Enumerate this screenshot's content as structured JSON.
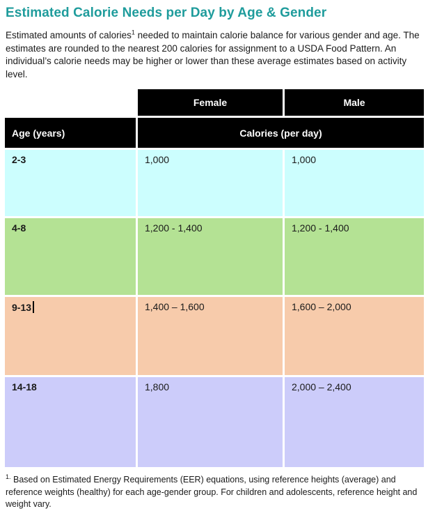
{
  "document": {
    "title": "Estimated Calorie Needs per Day by Age & Gender",
    "intro": {
      "text_before_superscript": "Estimated amounts of calories",
      "superscript": "1",
      "text_after_superscript": " needed to maintain calorie balance for various gender and age. The estimates are rounded to the nearest 200 calories for assignment to a USDA Food Pattern. An individual’s calorie needs may be higher or lower than these average estimates based on activity level."
    },
    "footnote": {
      "superscript": "1.",
      "text": " Based on Estimated Energy Requirements (EER) equations, using reference heights (average) and reference weights (healthy) for each age-gender group. For children and adolescents, reference height and weight vary."
    }
  },
  "table": {
    "gender_column_headers": {
      "female": "Female",
      "male": "Male"
    },
    "age_header": "Age (years)",
    "calories_header": "Calories (per day)",
    "rows": [
      {
        "age": "2-3",
        "female": "1,000",
        "male": "1,000",
        "bg": "#CCFEFE"
      },
      {
        "age": "4-8",
        "female": "1,200 - 1,400",
        "male": "1,200 - 1,400",
        "bg": "#B4E294"
      },
      {
        "age": "9-13",
        "female": "1,400 – 1,600",
        "male": "1,600 – 2,000",
        "bg": "#F7CBAB"
      },
      {
        "age": "14-18",
        "female": "1,800",
        "male": "2,000 – 2,400",
        "bg": "#CCCCFA"
      }
    ]
  },
  "colors": {
    "title_text": "#1F9C9C",
    "header_background": "#000000",
    "header_text": "#FFFFFF",
    "body_text": "#1A1A1A",
    "row_2_3_background": "#CCFEFE",
    "row_4_8_background": "#B4E294",
    "row_9_13_background": "#F7CBAB",
    "row_14_18_background": "#CCCCFA"
  }
}
